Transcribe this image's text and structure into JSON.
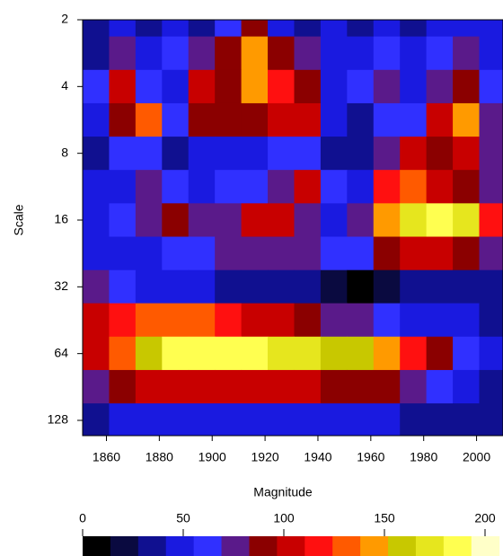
{
  "chart_data": {
    "type": "heatmap",
    "y_label": "Scale",
    "colorbar_label": "Magnitude",
    "x": [
      1856,
      1866,
      1876,
      1886,
      1896,
      1906,
      1916,
      1926,
      1936,
      1946,
      1956,
      1966,
      1976,
      1986,
      1996,
      2006
    ],
    "y": [
      2,
      2.83,
      4,
      5.66,
      8,
      11.3,
      16,
      22.6,
      32,
      45,
      64,
      90,
      128
    ],
    "z": [
      [
        30,
        45,
        40,
        50,
        40,
        60,
        90,
        50,
        40,
        45,
        40,
        50,
        40,
        45,
        50,
        45
      ],
      [
        40,
        80,
        50,
        60,
        70,
        90,
        140,
        95,
        70,
        55,
        50,
        60,
        45,
        60,
        70,
        45
      ],
      [
        60,
        100,
        60,
        50,
        100,
        90,
        150,
        120,
        95,
        50,
        60,
        70,
        55,
        70,
        90,
        60
      ],
      [
        50,
        90,
        130,
        60,
        90,
        95,
        90,
        100,
        110,
        50,
        40,
        60,
        60,
        100,
        140,
        80
      ],
      [
        40,
        60,
        60,
        40,
        50,
        50,
        50,
        60,
        60,
        30,
        40,
        80,
        100,
        90,
        100,
        70
      ],
      [
        50,
        55,
        70,
        60,
        55,
        60,
        60,
        70,
        100,
        60,
        50,
        120,
        130,
        100,
        90,
        70
      ],
      [
        45,
        60,
        70,
        90,
        80,
        80,
        100,
        110,
        80,
        50,
        70,
        140,
        170,
        185,
        170,
        120
      ],
      [
        45,
        50,
        55,
        60,
        60,
        70,
        75,
        75,
        70,
        65,
        60,
        90,
        100,
        100,
        90,
        70
      ],
      [
        70,
        60,
        50,
        45,
        45,
        40,
        40,
        35,
        30,
        15,
        10,
        15,
        35,
        40,
        40,
        40
      ],
      [
        110,
        120,
        130,
        125,
        125,
        120,
        110,
        100,
        90,
        80,
        75,
        65,
        55,
        50,
        45,
        40
      ],
      [
        100,
        130,
        160,
        180,
        190,
        185,
        180,
        175,
        170,
        165,
        160,
        150,
        120,
        90,
        60,
        45
      ],
      [
        70,
        90,
        100,
        110,
        110,
        110,
        105,
        100,
        100,
        95,
        90,
        85,
        70,
        60,
        50,
        40
      ],
      [
        40,
        45,
        45,
        50,
        50,
        50,
        45,
        45,
        45,
        45,
        45,
        45,
        40,
        40,
        40,
        40
      ]
    ],
    "xlim": [
      1851,
      2010
    ],
    "xticks": [
      1860,
      1880,
      1900,
      1920,
      1940,
      1960,
      1980,
      2000
    ],
    "ylim": [
      2,
      150
    ],
    "yticks": [
      2,
      4,
      8,
      16,
      32,
      64,
      128
    ],
    "ylog": true,
    "y_reversed": true,
    "clim": [
      0,
      207
    ],
    "cticks": [
      0,
      50,
      100,
      150,
      200
    ],
    "colormap": [
      "#000000",
      "#0a0a40",
      "#101090",
      "#1a1ae0",
      "#3030ff",
      "#5a1a8a",
      "#8b0000",
      "#c80000",
      "#ff1010",
      "#ff5a00",
      "#ff9a00",
      "#c8c800",
      "#e6e61e",
      "#ffff50",
      "#ffffc8"
    ]
  }
}
